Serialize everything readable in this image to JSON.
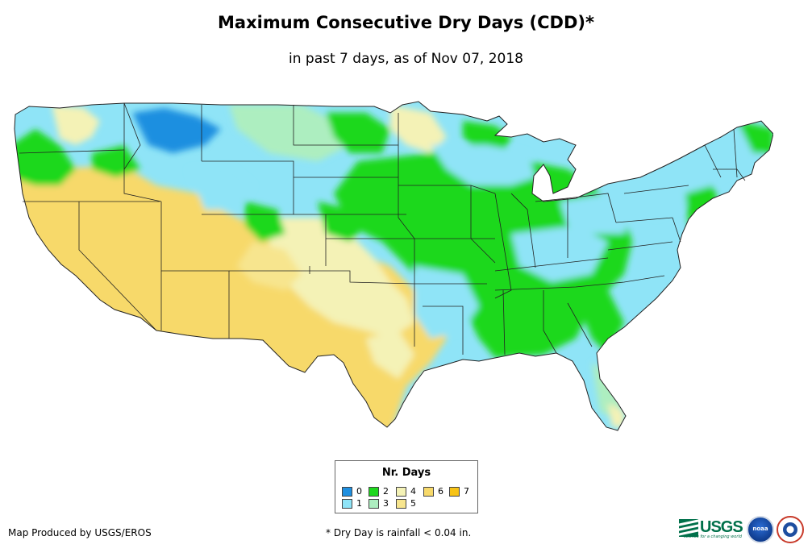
{
  "title": "Maximum Consecutive Dry Days (CDD)*",
  "subtitle": "in past 7 days, as of Nov 07, 2018",
  "legend": {
    "title": "Nr. Days",
    "items": [
      {
        "label": "0",
        "color": "#1e8fe0"
      },
      {
        "label": "1",
        "color": "#8fe4f7"
      },
      {
        "label": "2",
        "color": "#1ed81e"
      },
      {
        "label": "3",
        "color": "#adeec0"
      },
      {
        "label": "4",
        "color": "#f4f2b6"
      },
      {
        "label": "5",
        "color": "#f7e58e"
      },
      {
        "label": "6",
        "color": "#f7d96a"
      },
      {
        "label": "7",
        "color": "#f7c316"
      }
    ]
  },
  "footer": {
    "credit": "Map Produced by USGS/EROS",
    "note": "* Dry Day is rainfall < 0.04 in."
  },
  "logos": {
    "usgs": "USGS",
    "usgs_tagline": "science for a changing world",
    "noaa": "noaa",
    "nws": "National Weather Service"
  }
}
